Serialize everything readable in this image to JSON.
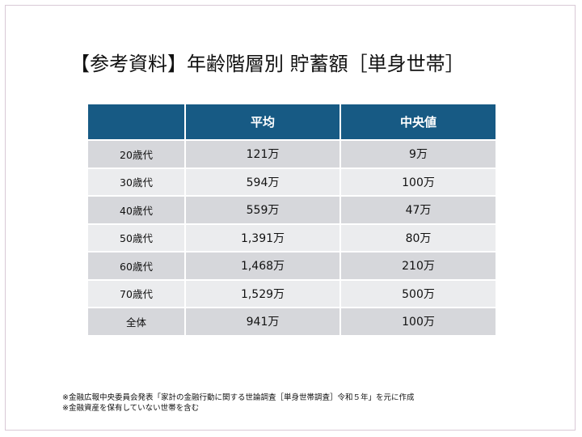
{
  "slide": {
    "title": "【参考資料】年齢階層別 貯蓄額［単身世帯］"
  },
  "table": {
    "headers": [
      "",
      "平均",
      "中央値"
    ],
    "rows": [
      {
        "label": "20歳代",
        "average": "121万",
        "median": "9万"
      },
      {
        "label": "30歳代",
        "average": "594万",
        "median": "100万"
      },
      {
        "label": "40歳代",
        "average": "559万",
        "median": "47万"
      },
      {
        "label": "50歳代",
        "average": "1,391万",
        "median": "80万"
      },
      {
        "label": "60歳代",
        "average": "1,468万",
        "median": "210万"
      },
      {
        "label": "70歳代",
        "average": "1,529万",
        "median": "500万"
      },
      {
        "label": "全体",
        "average": "941万",
        "median": "100万"
      }
    ]
  },
  "notes": [
    "※金融広報中央委員会発表「家計の金融行動に関する世論調査［単身世帯調査］令和５年」を元に作成",
    "※金融資産を保有していない世帯を含む"
  ],
  "colors": {
    "header_bg": "#175a84",
    "row_dark": "#d6d7db",
    "row_light": "#ebecee"
  }
}
